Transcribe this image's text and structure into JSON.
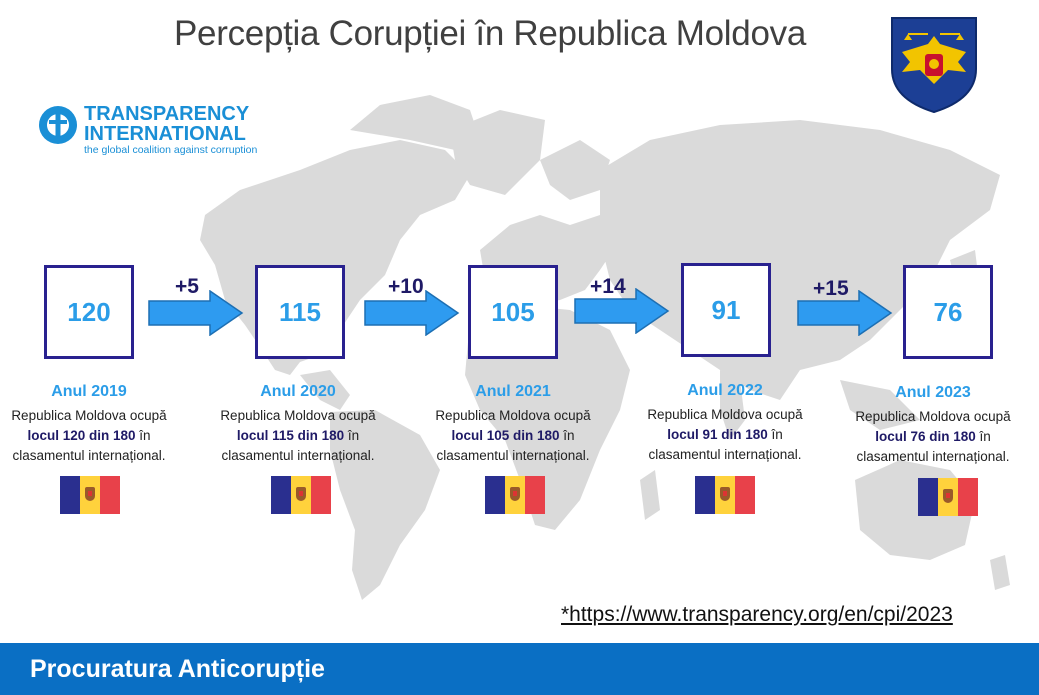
{
  "title": "Percepția Corupției în Republica Moldova",
  "logo": {
    "line1": "TRANSPARENCY",
    "line2": "INTERNATIONAL",
    "tagline": "the global coalition against corruption",
    "color": "#1a8fd6"
  },
  "emblem": {
    "name": "prosecutor-office-emblem",
    "colors": [
      "#1c3f95",
      "#f2c400",
      "#c8102e"
    ]
  },
  "years": [
    {
      "rank": "120",
      "year": "Anul 2019",
      "text_pre": "Republica Moldova ocupă",
      "text_bold": "locul 120 din 180",
      "text_mid": " în",
      "text_post": "clasamentul internațional."
    },
    {
      "rank": "115",
      "year": "Anul 2020",
      "text_pre": "Republica Moldova ocupă",
      "text_bold": "locul 115 din 180",
      "text_mid": " în",
      "text_post": "clasamentul internațional."
    },
    {
      "rank": "105",
      "year": "Anul 2021",
      "text_pre": "Republica Moldova ocupă",
      "text_bold": "locul 105 din 180",
      "text_mid": " în",
      "text_post": "clasamentul internațional."
    },
    {
      "rank": "91",
      "year": "Anul 2022",
      "text_pre": "Republica Moldova ocupă",
      "text_bold": "locul 91 din 180",
      "text_mid": " în",
      "text_post": "clasamentul internațional."
    },
    {
      "rank": "76",
      "year": "Anul 2023",
      "text_pre": "Republica Moldova ocupă",
      "text_bold": "locul 76 din 180",
      "text_mid": " în",
      "text_post": "clasamentul internațional."
    }
  ],
  "deltas": [
    "+5",
    "+10",
    "+14",
    "+15"
  ],
  "source": "*https://www.transparency.org/en/cpi/2023",
  "footer": "Procuratura Anticorupție",
  "colors": {
    "box_border": "#29218f",
    "rank": "#2b9de8",
    "arrow": "#2e9bf0",
    "footer": "#0a6fc4",
    "map": "#d9d9d9"
  }
}
